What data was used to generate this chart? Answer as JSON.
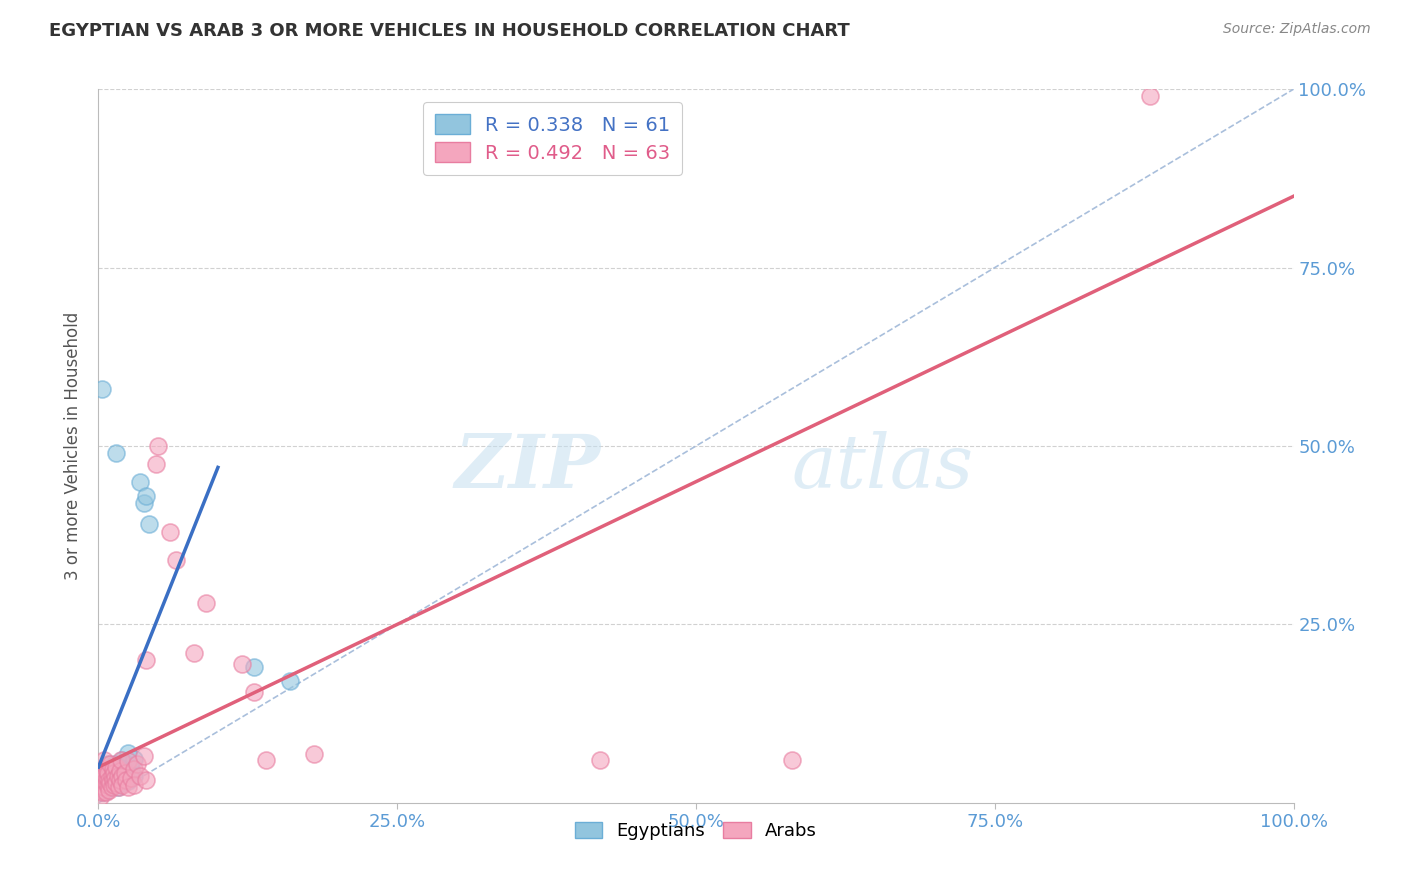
{
  "title": "EGYPTIAN VS ARAB 3 OR MORE VEHICLES IN HOUSEHOLD CORRELATION CHART",
  "source": "Source: ZipAtlas.com",
  "ylabel": "3 or more Vehicles in Household",
  "xlim": [
    0,
    1
  ],
  "ylim": [
    0,
    1
  ],
  "xticks": [
    0,
    0.25,
    0.5,
    0.75,
    1.0
  ],
  "yticks": [
    0.25,
    0.5,
    0.75,
    1.0
  ],
  "xticklabels": [
    "0.0%",
    "25.0%",
    "50.0%",
    "75.0%",
    "100.0%"
  ],
  "yticklabels_right": [
    "25.0%",
    "50.0%",
    "75.0%",
    "100.0%"
  ],
  "egyptian_color": "#92c5de",
  "arab_color": "#f4a6be",
  "egyptian_edge": "#6baed6",
  "arab_edge": "#e87da0",
  "egyptian_label": "Egyptians",
  "arab_label": "Arabs",
  "R_egyptian": 0.338,
  "N_egyptian": 61,
  "R_arab": 0.492,
  "N_arab": 63,
  "watermark_zip": "ZIP",
  "watermark_atlas": "atlas",
  "background_color": "#ffffff",
  "grid_color": "#cccccc",
  "ref_line_color": "#a0b8d8",
  "blue_reg_color": "#3a6fc4",
  "pink_reg_color": "#e0607a",
  "egyptian_scatter": [
    [
      0.001,
      0.03
    ],
    [
      0.002,
      0.025
    ],
    [
      0.002,
      0.04
    ],
    [
      0.003,
      0.028
    ],
    [
      0.003,
      0.035
    ],
    [
      0.003,
      0.022
    ],
    [
      0.004,
      0.032
    ],
    [
      0.004,
      0.018
    ],
    [
      0.004,
      0.045
    ],
    [
      0.005,
      0.028
    ],
    [
      0.005,
      0.038
    ],
    [
      0.005,
      0.015
    ],
    [
      0.006,
      0.025
    ],
    [
      0.006,
      0.042
    ],
    [
      0.006,
      0.032
    ],
    [
      0.007,
      0.035
    ],
    [
      0.007,
      0.022
    ],
    [
      0.007,
      0.048
    ],
    [
      0.008,
      0.028
    ],
    [
      0.008,
      0.038
    ],
    [
      0.008,
      0.055
    ],
    [
      0.009,
      0.032
    ],
    [
      0.009,
      0.025
    ],
    [
      0.009,
      0.042
    ],
    [
      0.01,
      0.035
    ],
    [
      0.01,
      0.045
    ],
    [
      0.01,
      0.022
    ],
    [
      0.011,
      0.038
    ],
    [
      0.011,
      0.028
    ],
    [
      0.012,
      0.048
    ],
    [
      0.012,
      0.032
    ],
    [
      0.013,
      0.04
    ],
    [
      0.013,
      0.025
    ],
    [
      0.014,
      0.035
    ],
    [
      0.014,
      0.055
    ],
    [
      0.015,
      0.03
    ],
    [
      0.015,
      0.045
    ],
    [
      0.016,
      0.038
    ],
    [
      0.016,
      0.022
    ],
    [
      0.017,
      0.05
    ],
    [
      0.018,
      0.032
    ],
    [
      0.018,
      0.042
    ],
    [
      0.019,
      0.028
    ],
    [
      0.02,
      0.06
    ],
    [
      0.02,
      0.035
    ],
    [
      0.022,
      0.045
    ],
    [
      0.023,
      0.038
    ],
    [
      0.024,
      0.055
    ],
    [
      0.025,
      0.07
    ],
    [
      0.025,
      0.03
    ],
    [
      0.027,
      0.048
    ],
    [
      0.03,
      0.062
    ],
    [
      0.03,
      0.038
    ],
    [
      0.035,
      0.45
    ],
    [
      0.038,
      0.42
    ],
    [
      0.04,
      0.43
    ],
    [
      0.042,
      0.39
    ],
    [
      0.003,
      0.58
    ],
    [
      0.015,
      0.49
    ],
    [
      0.13,
      0.19
    ],
    [
      0.16,
      0.17
    ]
  ],
  "arab_scatter": [
    [
      0.001,
      0.008
    ],
    [
      0.001,
      0.035
    ],
    [
      0.002,
      0.025
    ],
    [
      0.002,
      0.018
    ],
    [
      0.003,
      0.042
    ],
    [
      0.003,
      0.028
    ],
    [
      0.003,
      0.015
    ],
    [
      0.004,
      0.032
    ],
    [
      0.004,
      0.048
    ],
    [
      0.005,
      0.022
    ],
    [
      0.005,
      0.038
    ],
    [
      0.005,
      0.06
    ],
    [
      0.006,
      0.028
    ],
    [
      0.006,
      0.015
    ],
    [
      0.007,
      0.035
    ],
    [
      0.007,
      0.045
    ],
    [
      0.008,
      0.025
    ],
    [
      0.008,
      0.042
    ],
    [
      0.009,
      0.032
    ],
    [
      0.009,
      0.018
    ],
    [
      0.01,
      0.055
    ],
    [
      0.01,
      0.028
    ],
    [
      0.011,
      0.038
    ],
    [
      0.011,
      0.022
    ],
    [
      0.012,
      0.048
    ],
    [
      0.012,
      0.032
    ],
    [
      0.013,
      0.042
    ],
    [
      0.013,
      0.025
    ],
    [
      0.014,
      0.035
    ],
    [
      0.015,
      0.028
    ],
    [
      0.015,
      0.05
    ],
    [
      0.016,
      0.038
    ],
    [
      0.017,
      0.022
    ],
    [
      0.018,
      0.045
    ],
    [
      0.018,
      0.032
    ],
    [
      0.019,
      0.06
    ],
    [
      0.02,
      0.038
    ],
    [
      0.02,
      0.025
    ],
    [
      0.022,
      0.042
    ],
    [
      0.023,
      0.032
    ],
    [
      0.025,
      0.058
    ],
    [
      0.025,
      0.022
    ],
    [
      0.027,
      0.035
    ],
    [
      0.03,
      0.048
    ],
    [
      0.03,
      0.025
    ],
    [
      0.032,
      0.055
    ],
    [
      0.035,
      0.038
    ],
    [
      0.038,
      0.065
    ],
    [
      0.04,
      0.032
    ],
    [
      0.04,
      0.2
    ],
    [
      0.048,
      0.475
    ],
    [
      0.05,
      0.5
    ],
    [
      0.06,
      0.38
    ],
    [
      0.065,
      0.34
    ],
    [
      0.08,
      0.21
    ],
    [
      0.09,
      0.28
    ],
    [
      0.12,
      0.195
    ],
    [
      0.13,
      0.155
    ],
    [
      0.14,
      0.06
    ],
    [
      0.18,
      0.068
    ],
    [
      0.42,
      0.06
    ],
    [
      0.58,
      0.06
    ],
    [
      0.88,
      0.99
    ]
  ]
}
